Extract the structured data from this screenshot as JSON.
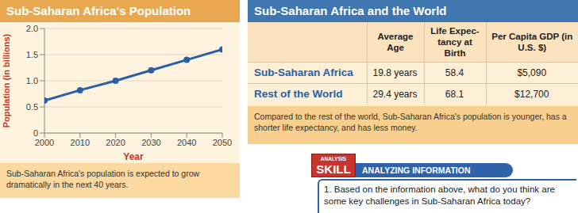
{
  "chart_data": {
    "type": "line",
    "title": "Sub-Saharan Africa's Population",
    "xlabel": "Year",
    "ylabel": "Population (in billions)",
    "x": [
      2000,
      2010,
      2020,
      2030,
      2040,
      2050
    ],
    "values": [
      0.62,
      0.82,
      1.0,
      1.2,
      1.4,
      1.6
    ],
    "color": "#2b5ea8",
    "marker": "circle",
    "xlim": [
      2000,
      2050
    ],
    "xticks": [
      2000,
      2010,
      2020,
      2030,
      2040,
      2050
    ],
    "ylim": [
      0,
      2
    ],
    "yticks": [
      0,
      0.5,
      {
        "value": 1,
        "label": "1.0"
      },
      {
        "value": 1.5,
        "label": "1.5"
      },
      {
        "value": 2,
        "label": "2.0"
      }
    ],
    "grid": true,
    "annotations": [
      "Sub-Saharan Africa's population is expected to grow dramatically in the next 40 years."
    ]
  },
  "table": {
    "title": "Sub-Saharan Africa and the World",
    "columns": [
      "Average Age",
      "Life Expec-tancy at Birth",
      "Per Capita GDP (in U.S. $)"
    ],
    "rows": [
      [
        "Sub-Saharan Africa",
        "19.8 years",
        "58.4",
        "$5,090"
      ],
      [
        "Rest of the World",
        "29.4 years",
        "68.1",
        "$12,700"
      ]
    ],
    "caption": "Compared to the rest of the world, Sub-Saharan Africa's population is younger, has a shorter life expectancy, and has less money."
  },
  "skill": {
    "badge": [
      "ANALYSIS",
      "SKILL"
    ],
    "heading": "ANALYZING INFORMATION",
    "question": "1. Based on the information above, what do you think are some key challenges in Sub-Saharan Africa today?"
  }
}
